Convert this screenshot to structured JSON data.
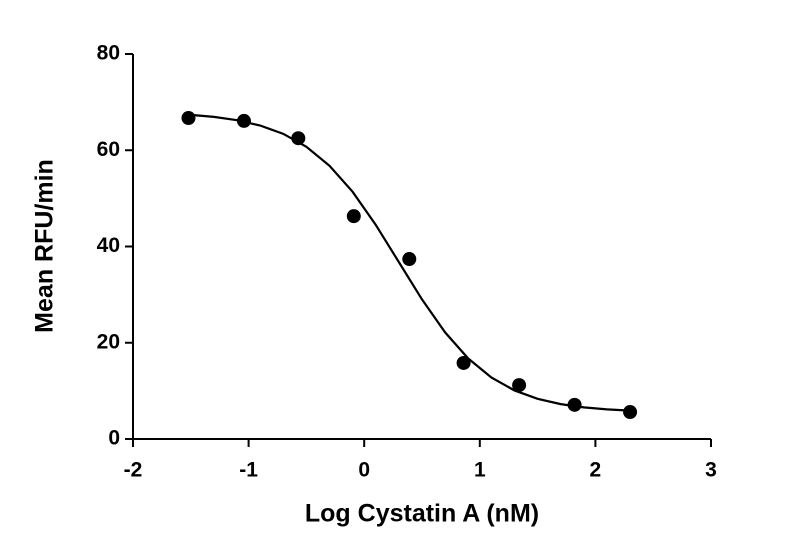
{
  "chart_data": {
    "type": "scatter",
    "xlabel": "Log Cystatin A (nM)",
    "ylabel": "Mean RFU/min",
    "xlim": [
      -2,
      3
    ],
    "xticks": [
      -2,
      -1,
      0,
      1,
      2,
      3
    ],
    "ylim": [
      0,
      80
    ],
    "yticks": [
      0,
      20,
      40,
      60,
      80
    ],
    "grid": false,
    "series": [
      {
        "type": "scatter",
        "color": "#000000",
        "x": [
          -1.52,
          -1.04,
          -0.57,
          -0.09,
          0.39,
          0.86,
          1.34,
          1.82,
          2.3
        ],
        "values": [
          66.7,
          66.1,
          62.5,
          46.3,
          37.4,
          15.8,
          11.2,
          7.1,
          5.6
        ]
      },
      {
        "type": "line",
        "color": "#000000",
        "x": [
          -1.5,
          -1.3,
          -1.1,
          -0.9,
          -0.7,
          -0.5,
          -0.3,
          -0.1,
          0.1,
          0.3,
          0.5,
          0.7,
          0.9,
          1.1,
          1.3,
          1.5,
          1.7,
          1.9,
          2.1,
          2.3
        ],
        "values": [
          67.35,
          66.93,
          66.25,
          65.14,
          63.41,
          60.71,
          56.77,
          51.36,
          44.49,
          36.75,
          29.0,
          22.15,
          16.72,
          12.78,
          10.09,
          8.36,
          7.25,
          6.57,
          6.15,
          5.89
        ]
      }
    ]
  }
}
